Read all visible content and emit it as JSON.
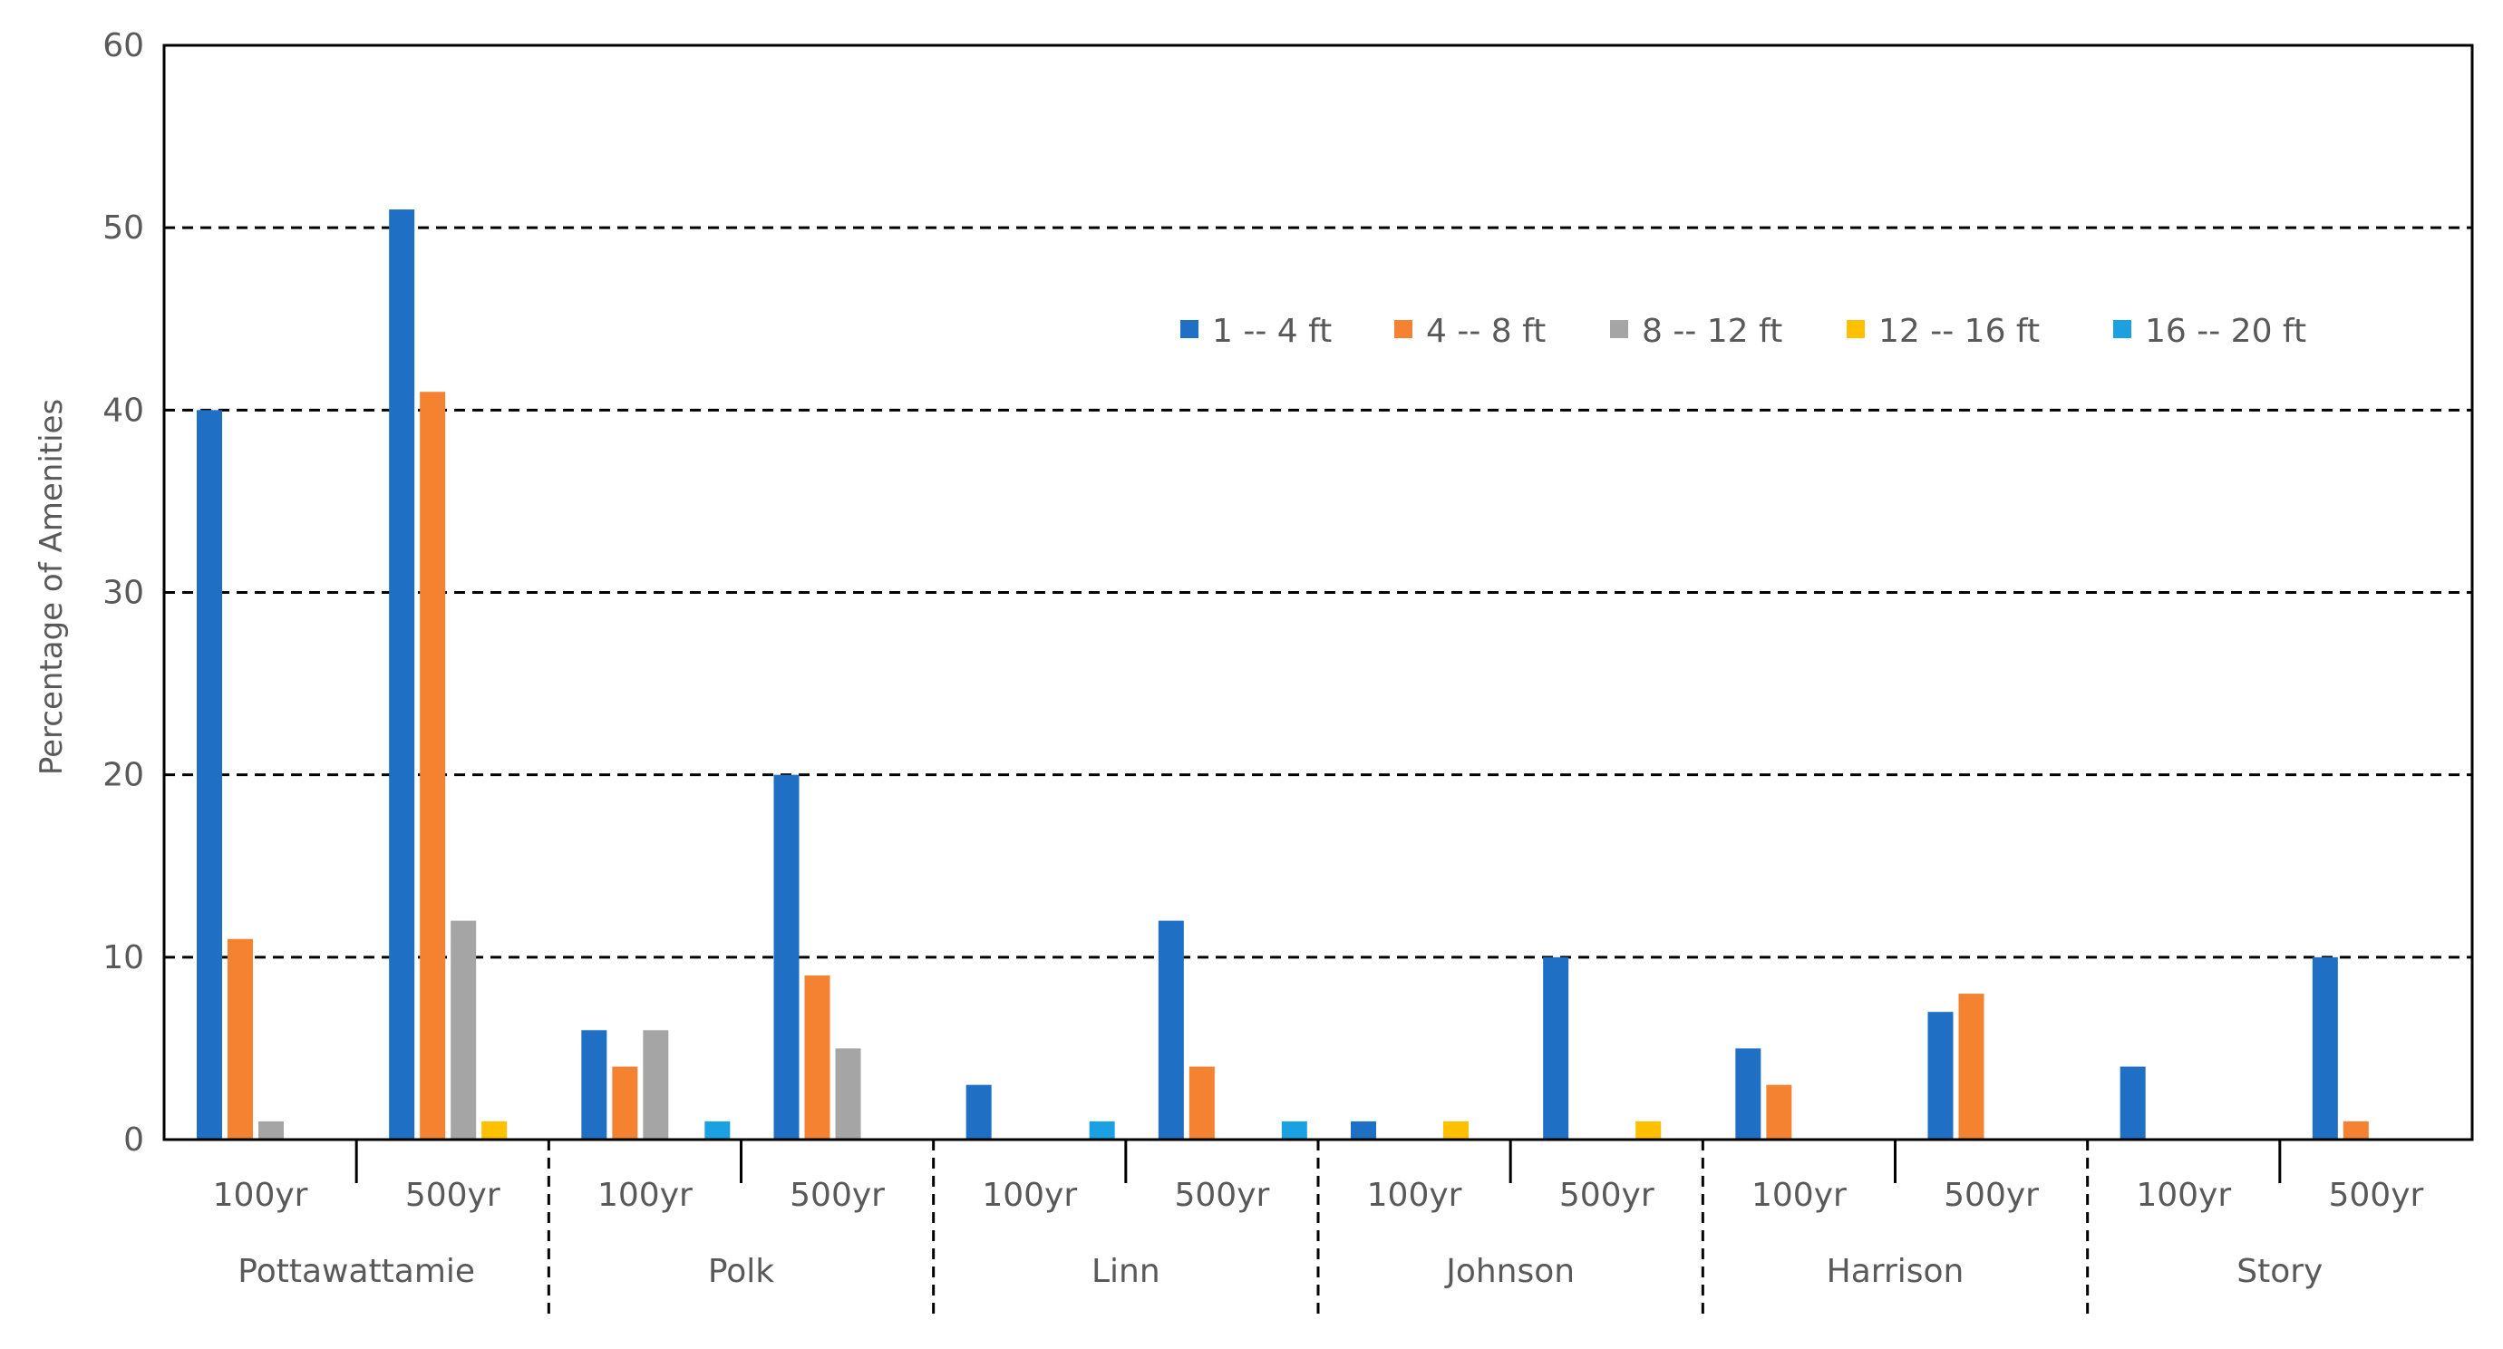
{
  "chart_data": {
    "type": "bar",
    "ylabel": "Percentage of Amenities",
    "ylim": [
      0,
      60
    ],
    "yticks": [
      0,
      10,
      20,
      30,
      40,
      50,
      60
    ],
    "grid": "horizontal-dashed",
    "legend_position": "top-right",
    "groups": [
      "Pottawattamie",
      "Polk",
      "Linn",
      "Johnson",
      "Harrison",
      "Story"
    ],
    "subcategories": [
      "100yr",
      "500yr"
    ],
    "categories": [
      "Pottawattamie 100yr",
      "Pottawattamie 500yr",
      "Polk 100yr",
      "Polk 500yr",
      "Linn 100yr",
      "Linn 500yr",
      "Johnson 100yr",
      "Johnson 500yr",
      "Harrison 100yr",
      "Harrison 500yr",
      "Story 100yr",
      "Story 500yr"
    ],
    "series": [
      {
        "name": "1 -- 4 ft",
        "color": "#1F6FC5",
        "values": [
          40,
          51,
          6,
          20,
          3,
          12,
          1,
          10,
          5,
          7,
          4,
          10
        ]
      },
      {
        "name": "4 -- 8 ft",
        "color": "#F58231",
        "values": [
          11,
          41,
          4,
          9,
          0,
          4,
          0,
          0,
          3,
          8,
          0,
          1
        ]
      },
      {
        "name": "8 -- 12 ft",
        "color": "#A5A5A5",
        "values": [
          1,
          12,
          6,
          5,
          0,
          0,
          0,
          0,
          0,
          0,
          0,
          0
        ]
      },
      {
        "name": "12 -- 16 ft",
        "color": "#FFC000",
        "values": [
          0,
          1,
          0,
          0,
          0,
          0,
          1,
          1,
          0,
          0,
          0,
          0
        ]
      },
      {
        "name": "16 -- 20 ft",
        "color": "#1BA1E2",
        "values": [
          0,
          0,
          1,
          0,
          1,
          1,
          0,
          0,
          0,
          0,
          0,
          0
        ]
      }
    ]
  }
}
